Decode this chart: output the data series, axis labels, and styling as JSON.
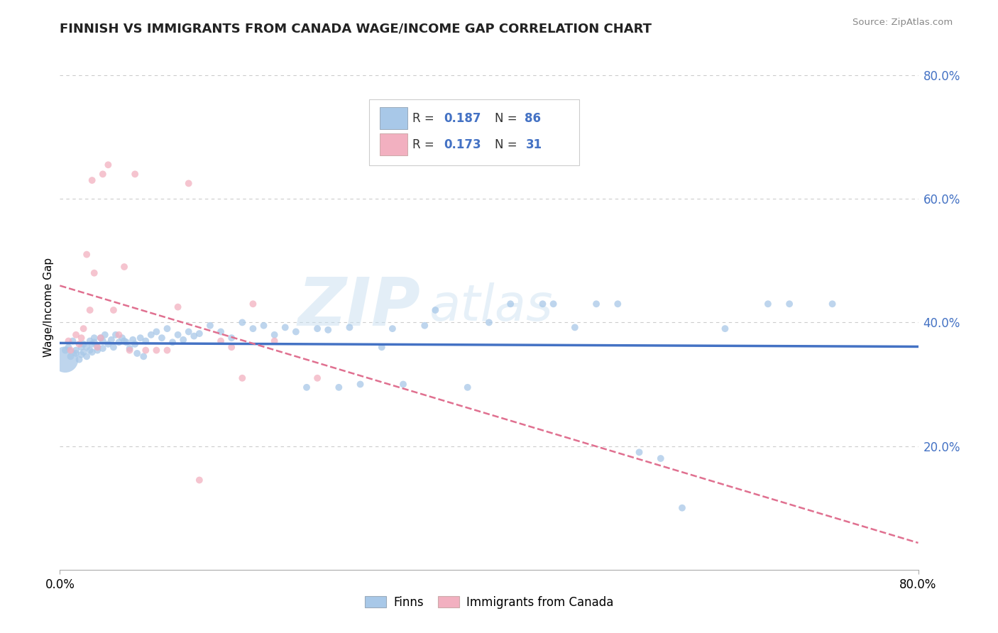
{
  "title": "FINNISH VS IMMIGRANTS FROM CANADA WAGE/INCOME GAP CORRELATION CHART",
  "source": "Source: ZipAtlas.com",
  "ylabel": "Wage/Income Gap",
  "watermark_zip": "ZIP",
  "watermark_atlas": "atlas",
  "color_finns": "#a8c8e8",
  "color_immigrants": "#f2b0c0",
  "color_line_finns": "#4472c4",
  "color_line_immigrants": "#e07090",
  "color_tick": "#4472c4",
  "finns_x": [
    0.005,
    0.008,
    0.01,
    0.012,
    0.015,
    0.015,
    0.018,
    0.02,
    0.02,
    0.022,
    0.022,
    0.025,
    0.025,
    0.028,
    0.028,
    0.03,
    0.03,
    0.032,
    0.032,
    0.035,
    0.035,
    0.038,
    0.04,
    0.04,
    0.042,
    0.045,
    0.048,
    0.05,
    0.052,
    0.055,
    0.058,
    0.06,
    0.062,
    0.065,
    0.068,
    0.07,
    0.072,
    0.075,
    0.078,
    0.08,
    0.085,
    0.09,
    0.095,
    0.1,
    0.105,
    0.11,
    0.115,
    0.12,
    0.125,
    0.13,
    0.14,
    0.15,
    0.16,
    0.17,
    0.18,
    0.19,
    0.2,
    0.21,
    0.22,
    0.23,
    0.24,
    0.25,
    0.26,
    0.27,
    0.28,
    0.3,
    0.31,
    0.32,
    0.34,
    0.35,
    0.38,
    0.4,
    0.42,
    0.45,
    0.46,
    0.48,
    0.5,
    0.52,
    0.54,
    0.56,
    0.58,
    0.62,
    0.66,
    0.68,
    0.72,
    0.005
  ],
  "finns_y": [
    0.355,
    0.36,
    0.345,
    0.37,
    0.35,
    0.355,
    0.34,
    0.36,
    0.348,
    0.365,
    0.352,
    0.36,
    0.345,
    0.37,
    0.355,
    0.365,
    0.352,
    0.368,
    0.375,
    0.36,
    0.355,
    0.375,
    0.37,
    0.358,
    0.38,
    0.365,
    0.372,
    0.36,
    0.38,
    0.368,
    0.375,
    0.37,
    0.368,
    0.358,
    0.372,
    0.365,
    0.35,
    0.375,
    0.345,
    0.37,
    0.38,
    0.385,
    0.375,
    0.39,
    0.368,
    0.38,
    0.372,
    0.385,
    0.378,
    0.382,
    0.395,
    0.385,
    0.375,
    0.4,
    0.39,
    0.395,
    0.38,
    0.392,
    0.385,
    0.295,
    0.39,
    0.388,
    0.295,
    0.392,
    0.3,
    0.36,
    0.39,
    0.3,
    0.395,
    0.42,
    0.295,
    0.4,
    0.43,
    0.43,
    0.43,
    0.392,
    0.43,
    0.43,
    0.19,
    0.18,
    0.1,
    0.39,
    0.43,
    0.43,
    0.43,
    0.34
  ],
  "finns_sizes": [
    50,
    50,
    50,
    50,
    50,
    50,
    50,
    50,
    50,
    50,
    50,
    50,
    50,
    50,
    50,
    50,
    50,
    50,
    50,
    50,
    50,
    50,
    50,
    50,
    50,
    50,
    50,
    50,
    50,
    50,
    50,
    50,
    50,
    50,
    50,
    50,
    50,
    50,
    50,
    50,
    50,
    50,
    50,
    50,
    50,
    50,
    50,
    50,
    50,
    50,
    50,
    50,
    50,
    50,
    50,
    50,
    50,
    50,
    50,
    50,
    50,
    50,
    50,
    50,
    50,
    50,
    50,
    50,
    50,
    50,
    50,
    50,
    50,
    50,
    50,
    50,
    50,
    50,
    50,
    50,
    50,
    50,
    50,
    50,
    50,
    700
  ],
  "immigrants_x": [
    0.008,
    0.01,
    0.015,
    0.018,
    0.02,
    0.022,
    0.025,
    0.028,
    0.03,
    0.032,
    0.035,
    0.038,
    0.04,
    0.045,
    0.05,
    0.055,
    0.06,
    0.065,
    0.07,
    0.08,
    0.09,
    0.1,
    0.11,
    0.12,
    0.13,
    0.15,
    0.16,
    0.17,
    0.18,
    0.2,
    0.24
  ],
  "immigrants_y": [
    0.37,
    0.355,
    0.38,
    0.365,
    0.375,
    0.39,
    0.51,
    0.42,
    0.63,
    0.48,
    0.36,
    0.375,
    0.64,
    0.655,
    0.42,
    0.38,
    0.49,
    0.355,
    0.64,
    0.355,
    0.355,
    0.355,
    0.425,
    0.625,
    0.145,
    0.37,
    0.36,
    0.31,
    0.43,
    0.37,
    0.31
  ],
  "xlim": [
    0.0,
    0.8
  ],
  "ylim": [
    0.0,
    0.85
  ],
  "yticks": [
    0.2,
    0.4,
    0.6,
    0.8
  ],
  "ytick_labels": [
    "20.0%",
    "40.0%",
    "60.0%",
    "80.0%"
  ]
}
